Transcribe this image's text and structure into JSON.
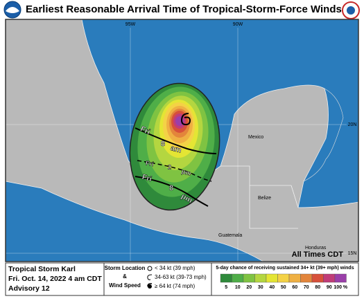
{
  "header": {
    "title": "Earliest Reasonable Arrival Time of Tropical-Storm-Force Winds"
  },
  "map": {
    "lon_labels": [
      "95W",
      "90W"
    ],
    "lat_labels": [
      "20N",
      "15N"
    ],
    "places": [
      "Mexico",
      "Belize",
      "Guatemala",
      "Honduras"
    ],
    "note": "All Times CDT",
    "time_labels": [
      [
        "Fri",
        "8",
        "am"
      ],
      [
        "Fri",
        "2",
        "pm"
      ],
      [
        "Fri",
        "8",
        "pm"
      ]
    ]
  },
  "footer": {
    "storm": "Tropical Storm Karl",
    "date": "Fri. Oct. 14, 2022 4 am CDT",
    "advisory": "Advisory 12",
    "key": {
      "title": [
        "Storm Location",
        "&",
        "Wind Speed"
      ],
      "items": [
        "< 34 kt (39 mph)",
        "34-63 kt (39-73 mph)",
        "≥ 64 kt (74 mph)"
      ]
    },
    "scale": {
      "title": "5-day chance of receiving sustained 34+ kt (39+ mph) winds",
      "labels": [
        "5",
        "10",
        "20",
        "30",
        "40",
        "50",
        "60",
        "70",
        "80",
        "90",
        "100 %"
      ],
      "colors": [
        "#2f8a3b",
        "#4fae48",
        "#7fc342",
        "#b4d640",
        "#e4e534",
        "#f4d246",
        "#efb043",
        "#e3853b",
        "#d7503a",
        "#c03c78",
        "#9a3fa9"
      ]
    }
  }
}
